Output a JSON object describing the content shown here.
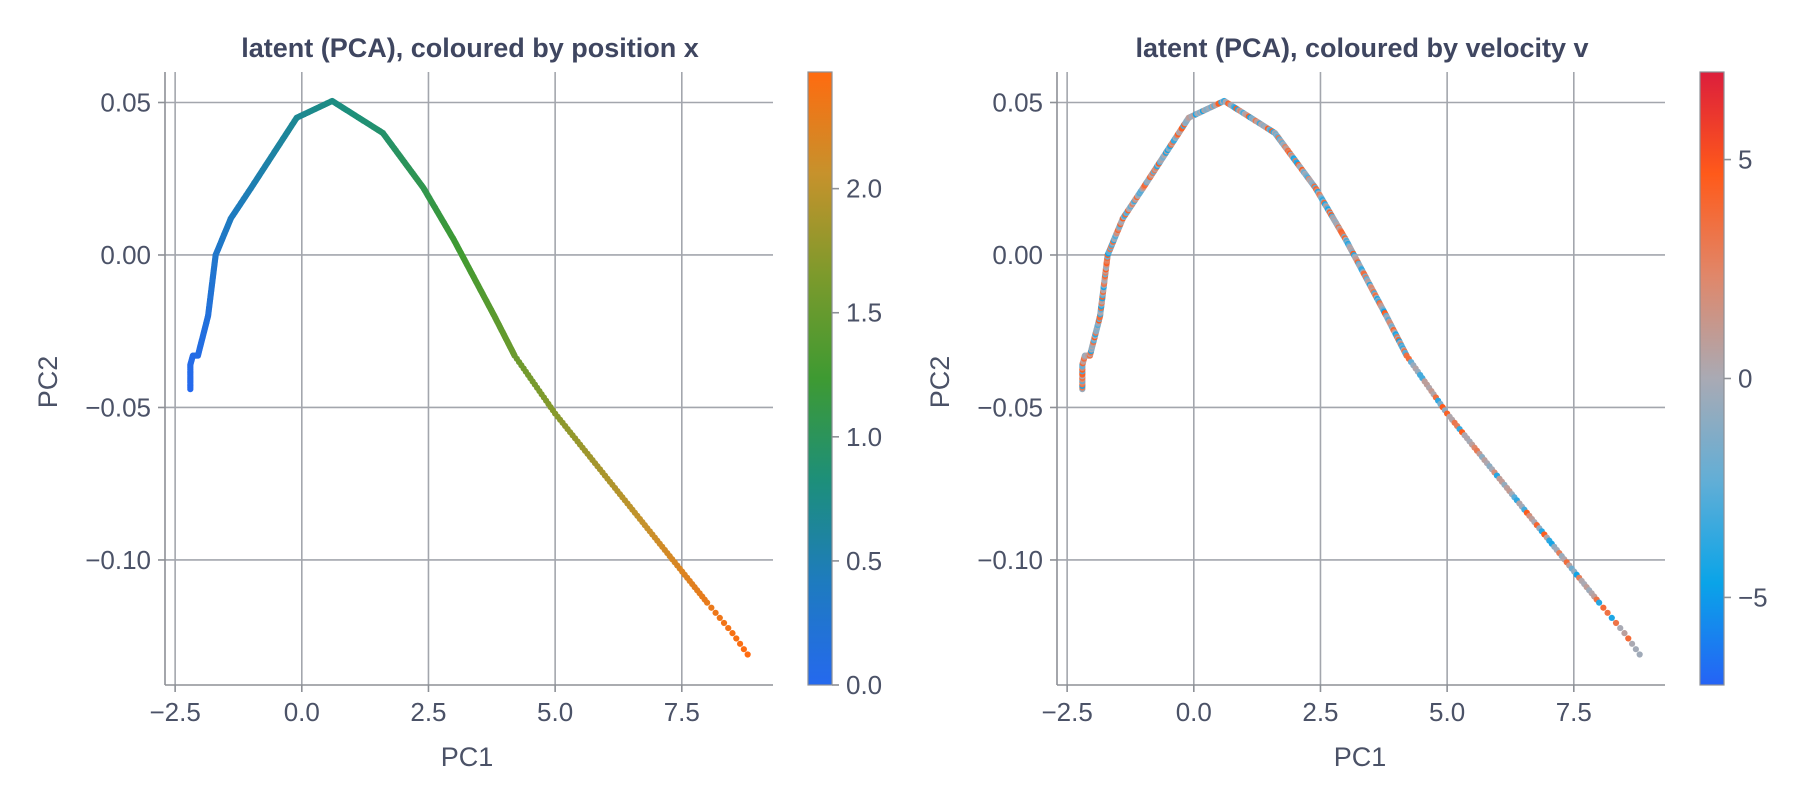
{
  "chart_data": [
    {
      "type": "scatter",
      "title": "latent (PCA), coloured by position x",
      "xlabel": "PC1",
      "ylabel": "PC2",
      "xlim": [
        -2.7,
        9.3
      ],
      "ylim": [
        -0.141,
        0.06
      ],
      "xticks": [
        -2.5,
        0.0,
        2.5,
        5.0,
        7.5
      ],
      "xtick_labels": [
        "−2.5",
        "0.0",
        "2.5",
        "5.0",
        "7.5"
      ],
      "yticks": [
        0.05,
        0.0,
        -0.05,
        -0.1
      ],
      "ytick_labels": [
        "0.05",
        "0.00",
        "−0.05",
        "−0.10"
      ],
      "grid": true,
      "curve": [
        [
          -2.2,
          -0.044
        ],
        [
          -2.2,
          -0.036
        ],
        [
          -2.15,
          -0.033
        ],
        [
          -2.05,
          -0.033
        ],
        [
          -1.85,
          -0.02
        ],
        [
          -1.7,
          0.0
        ],
        [
          -1.4,
          0.012
        ],
        [
          -1.0,
          0.022
        ],
        [
          -0.1,
          0.045
        ],
        [
          0.6,
          0.0505
        ],
        [
          1.6,
          0.04
        ],
        [
          2.4,
          0.022
        ],
        [
          3.0,
          0.005
        ],
        [
          3.8,
          -0.02
        ],
        [
          4.2,
          -0.033
        ],
        [
          5.0,
          -0.052
        ],
        [
          8.0,
          -0.114
        ],
        [
          8.5,
          -0.124
        ],
        [
          8.8,
          -0.131
        ]
      ],
      "colorbar": {
        "label": "position x",
        "min": 0.0,
        "max": 2.47,
        "ticks": [
          0.0,
          0.5,
          1.0,
          1.5,
          2.0
        ],
        "tick_labels": [
          "0.0",
          "0.5",
          "1.0",
          "1.5",
          "2.0"
        ],
        "colors": [
          "#2569ee",
          "#1e7bbf",
          "#1d8f7a",
          "#3e9a32",
          "#7c9a2c",
          "#c6922c",
          "#ff6b10"
        ]
      }
    },
    {
      "type": "scatter",
      "title": "latent (PCA), coloured by velocity v",
      "xlabel": "PC1",
      "ylabel": "PC2",
      "xlim": [
        -2.7,
        9.3
      ],
      "ylim": [
        -0.141,
        0.06
      ],
      "xticks": [
        -2.5,
        0.0,
        2.5,
        5.0,
        7.5
      ],
      "xtick_labels": [
        "−2.5",
        "0.0",
        "2.5",
        "5.0",
        "7.5"
      ],
      "yticks": [
        0.05,
        0.0,
        -0.05,
        -0.1
      ],
      "ytick_labels": [
        "0.05",
        "0.00",
        "−0.05",
        "−0.10"
      ],
      "grid": true,
      "curve": [
        [
          -2.2,
          -0.044
        ],
        [
          -2.2,
          -0.036
        ],
        [
          -2.15,
          -0.033
        ],
        [
          -2.05,
          -0.033
        ],
        [
          -1.85,
          -0.02
        ],
        [
          -1.7,
          0.0
        ],
        [
          -1.4,
          0.012
        ],
        [
          -1.0,
          0.022
        ],
        [
          -0.1,
          0.045
        ],
        [
          0.6,
          0.0505
        ],
        [
          1.6,
          0.04
        ],
        [
          2.4,
          0.022
        ],
        [
          3.0,
          0.005
        ],
        [
          3.8,
          -0.02
        ],
        [
          4.2,
          -0.033
        ],
        [
          5.0,
          -0.052
        ],
        [
          8.0,
          -0.114
        ],
        [
          8.5,
          -0.124
        ],
        [
          8.8,
          -0.131
        ]
      ],
      "colorbar": {
        "label": "velocity v",
        "min": -7.0,
        "max": 7.0,
        "ticks": [
          5,
          0,
          -5
        ],
        "tick_labels": [
          "5",
          "0",
          "−5"
        ],
        "colors": [
          "#2563f5",
          "#0aa4e8",
          "#62aed6",
          "#a9aab4",
          "#e0876a",
          "#ff5a1a",
          "#dc1e3c"
        ]
      }
    }
  ]
}
